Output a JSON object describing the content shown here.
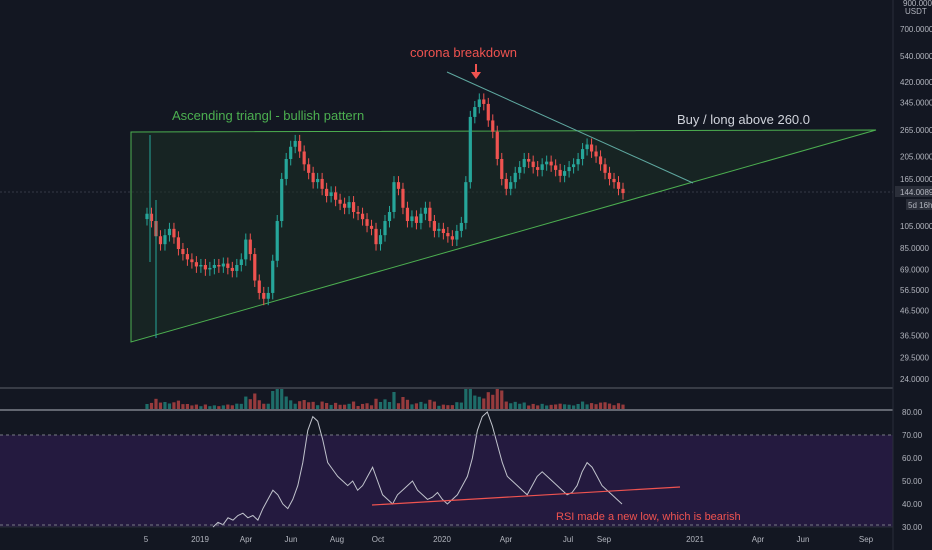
{
  "chart_data": {
    "type": "candlestick",
    "symbol_axis_header": {
      "value": "900.0000",
      "currency": "USDT"
    },
    "price_axis": {
      "scale": "log",
      "ticks": [
        "700.0000",
        "540.0000",
        "420.0000",
        "345.0000",
        "265.0000",
        "205.0000",
        "165.0000",
        "105.0000",
        "85.0000",
        "69.0000",
        "56.5000",
        "46.5000",
        "36.5000",
        "29.5000",
        "24.0000"
      ]
    },
    "last_price": {
      "value": "144.0089",
      "countdown": "5d 16h"
    },
    "time_axis": {
      "ticks": [
        "5",
        "2019",
        "Apr",
        "Jun",
        "Aug",
        "Oct",
        "2020",
        "Apr",
        "Jul",
        "Sep",
        "2021",
        "Apr",
        "Jun",
        "Sep"
      ]
    },
    "rsi_axis": {
      "ticks": [
        "80.00",
        "70.00",
        "60.00",
        "50.00",
        "40.00",
        "30.00"
      ],
      "overbought": 70,
      "oversold": 30
    },
    "colors": {
      "up": "#26a69a",
      "down": "#ef5350",
      "trendline": "#4caf50",
      "annotation_text": "#ef5350",
      "rsi_line": "#b2b5be",
      "rsi_band": "#2a1d4a"
    },
    "annotations": {
      "ascending_triangle": "Ascending triangl - bullish pattern",
      "corona": "corona breakdown",
      "buy_long": "Buy / long above 260.0",
      "rsi_note": "RSI made a new low, which is bearish"
    },
    "candles_close": [
      118,
      110,
      95,
      88,
      96,
      102,
      94,
      84,
      80,
      76,
      74,
      71,
      72,
      69,
      70,
      72,
      71,
      73,
      70,
      68,
      72,
      76,
      92,
      80,
      62,
      55,
      52,
      55,
      75,
      110,
      165,
      200,
      225,
      238,
      215,
      190,
      175,
      160,
      165,
      150,
      140,
      145,
      135,
      130,
      125,
      132,
      120,
      118,
      112,
      105,
      102,
      88,
      96,
      110,
      120,
      160,
      150,
      125,
      110,
      115,
      108,
      118,
      125,
      110,
      100,
      102,
      98,
      95,
      92,
      100,
      108,
      160,
      300,
      330,
      355,
      340,
      290,
      260,
      200,
      165,
      150,
      160,
      175,
      185,
      200,
      195,
      185,
      180,
      190,
      195,
      188,
      180,
      170,
      178,
      185,
      190,
      200,
      220,
      230,
      215,
      205,
      190,
      175,
      165,
      160,
      150,
      144
    ],
    "rsi_values": [
      30,
      32,
      31,
      34,
      33,
      35,
      36,
      34,
      35,
      33,
      38,
      42,
      46,
      44,
      40,
      38,
      42,
      48,
      58,
      72,
      78,
      76,
      68,
      58,
      55,
      52,
      50,
      48,
      50,
      46,
      48,
      52,
      56,
      50,
      44,
      42,
      40,
      44,
      46,
      48,
      50,
      46,
      44,
      42,
      43,
      45,
      42,
      40,
      42,
      44,
      48,
      52,
      60,
      72,
      78,
      80,
      74,
      66,
      58,
      52,
      50,
      48,
      46,
      44,
      48,
      52,
      54,
      52,
      50,
      48,
      46,
      44,
      45,
      48,
      54,
      58,
      56,
      52,
      48,
      46,
      44,
      42,
      40
    ]
  }
}
